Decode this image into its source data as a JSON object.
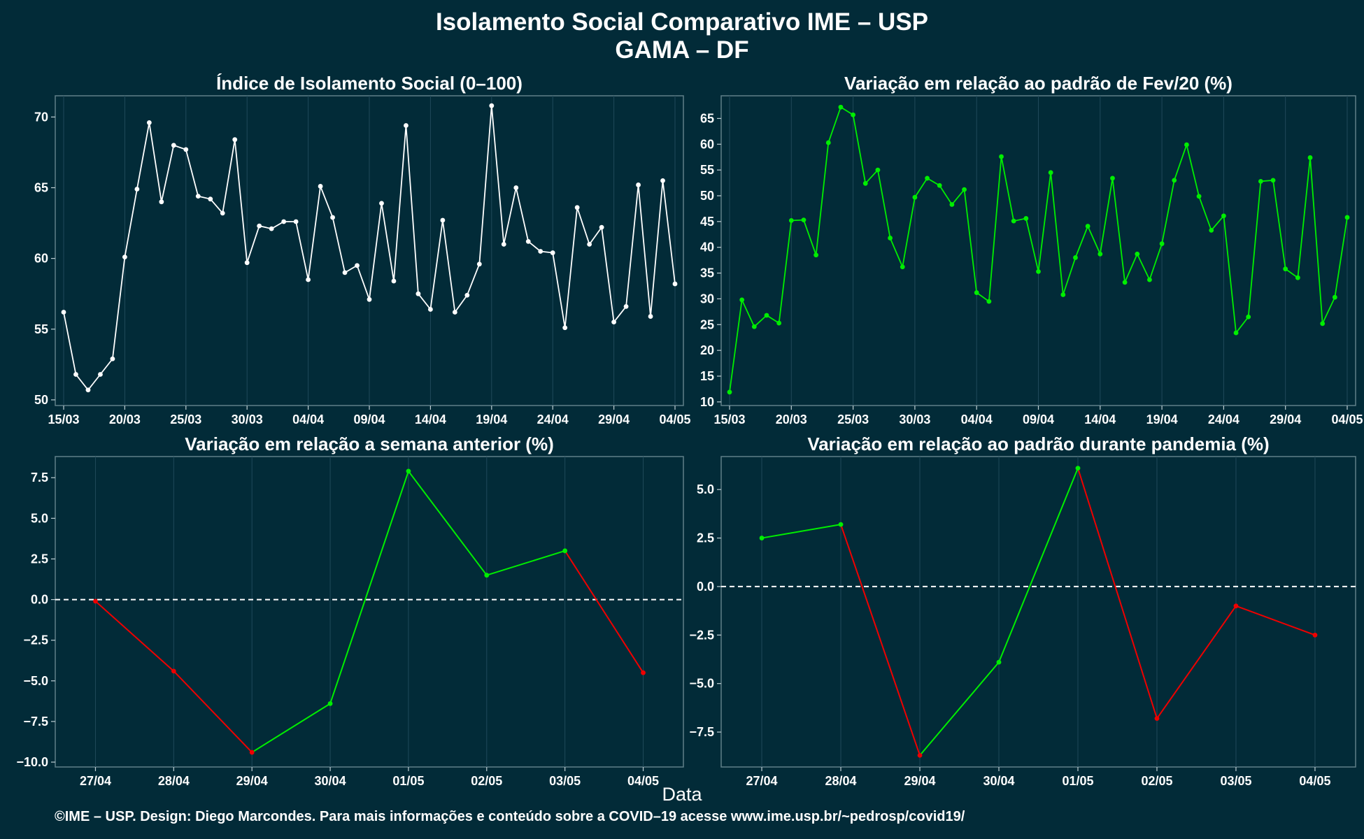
{
  "header": {
    "title": "Isolamento Social Comparativo IME – USP",
    "subtitle": "GAMA – DF"
  },
  "colors": {
    "background": "#022b38",
    "index_line": "#ffffff",
    "fev_line": "#00ee00",
    "increase": "#00ee00",
    "decrease": "#ee0000",
    "grid": "#20495a"
  },
  "footer": {
    "x_label": "Data",
    "credit": "©IME – USP. Design: Diego Marcondes. Para mais informações e conteúdo sobre a COVID–19 acesse www.ime.usp.br/~pedrosp/covid19/"
  },
  "chart_data": [
    {
      "id": "index",
      "type": "line",
      "title": "Índice de Isolamento Social (0–100)",
      "x_start": "15/03",
      "x_tick_labels": [
        "15/03",
        "20/03",
        "25/03",
        "30/03",
        "04/04",
        "09/04",
        "14/04",
        "19/04",
        "24/04",
        "29/04",
        "04/05"
      ],
      "y_ticks": [
        50,
        55,
        60,
        65,
        70
      ],
      "ylim": [
        49.6,
        71.5
      ],
      "reference_line": null,
      "values": [
        56.2,
        51.8,
        50.7,
        51.8,
        52.9,
        60.1,
        64.9,
        69.6,
        64.0,
        68.0,
        67.7,
        64.4,
        64.2,
        63.2,
        68.4,
        59.7,
        62.3,
        62.1,
        62.6,
        62.6,
        58.5,
        65.1,
        62.9,
        59.0,
        59.5,
        57.1,
        63.9,
        58.4,
        69.4,
        57.5,
        56.4,
        62.7,
        56.2,
        57.4,
        59.6,
        70.8,
        61.0,
        65.0,
        61.2,
        60.5,
        60.4,
        55.1,
        63.6,
        61.0,
        62.2,
        55.5,
        56.6,
        65.2,
        55.9,
        65.5,
        58.2
      ],
      "color_mode": "single",
      "grid": true
    },
    {
      "id": "fev",
      "type": "line",
      "title": "Variação em relação ao padrão de Fev/20 (%)",
      "x_start": "15/03",
      "x_tick_labels": [
        "15/03",
        "20/03",
        "25/03",
        "30/03",
        "04/04",
        "09/04",
        "14/04",
        "19/04",
        "24/04",
        "29/04",
        "04/05"
      ],
      "y_ticks": [
        10,
        15,
        20,
        25,
        30,
        35,
        40,
        45,
        50,
        55,
        60,
        65
      ],
      "ylim": [
        9.3,
        69.4
      ],
      "reference_line": null,
      "values": [
        11.9,
        29.8,
        24.6,
        26.8,
        25.3,
        45.2,
        45.3,
        38.5,
        60.3,
        67.2,
        65.7,
        52.4,
        55.0,
        41.8,
        36.2,
        49.7,
        53.4,
        52.0,
        48.3,
        51.2,
        31.2,
        29.5,
        57.6,
        45.1,
        45.6,
        35.3,
        54.5,
        30.8,
        38.0,
        44.1,
        38.7,
        53.4,
        33.2,
        38.7,
        33.7,
        40.7,
        53.0,
        59.9,
        49.9,
        43.3,
        46.1,
        23.4,
        26.5,
        52.8,
        53.0,
        35.8,
        34.1,
        57.4,
        25.2,
        30.3,
        45.8
      ],
      "color_mode": "single",
      "grid": true
    },
    {
      "id": "week",
      "type": "line",
      "title": "Variação em relação a semana anterior (%)",
      "categories": [
        "27/04",
        "28/04",
        "29/04",
        "30/04",
        "01/05",
        "02/05",
        "03/05",
        "04/05"
      ],
      "values": [
        -0.1,
        -4.4,
        -9.4,
        -6.4,
        7.9,
        1.5,
        3.0,
        -4.5
      ],
      "point_colors": [
        "decrease",
        "decrease",
        "decrease",
        "increase",
        "increase",
        "increase",
        "increase",
        "decrease"
      ],
      "y_ticks": [
        -10.0,
        -7.5,
        -5.0,
        -2.5,
        0.0,
        2.5,
        5.0,
        7.5
      ],
      "y_tick_labels": [
        "−10.0",
        "−7.5",
        "−5.0",
        "−2.5",
        "0.0",
        "2.5",
        "5.0",
        "7.5"
      ],
      "ylim": [
        -10.3,
        8.8
      ],
      "reference_line": 0,
      "color_mode": "segments",
      "grid": true
    },
    {
      "id": "pandemia",
      "type": "line",
      "title": "Variação em relação ao padrão durante pandemia (%)",
      "categories": [
        "27/04",
        "28/04",
        "29/04",
        "30/04",
        "01/05",
        "02/05",
        "03/05",
        "04/05"
      ],
      "values": [
        2.5,
        3.2,
        -8.7,
        -3.9,
        6.1,
        -6.8,
        -1.0,
        -2.5
      ],
      "point_colors": [
        "increase",
        "increase",
        "decrease",
        "increase",
        "increase",
        "decrease",
        "decrease",
        "decrease"
      ],
      "y_ticks": [
        -7.5,
        -5.0,
        -2.5,
        0.0,
        2.5,
        5.0
      ],
      "y_tick_labels": [
        "−7.5",
        "−5.0",
        "−2.5",
        "0.0",
        "2.5",
        "5.0"
      ],
      "ylim": [
        -9.3,
        6.7
      ],
      "reference_line": 0,
      "color_mode": "segments",
      "grid": true
    }
  ]
}
